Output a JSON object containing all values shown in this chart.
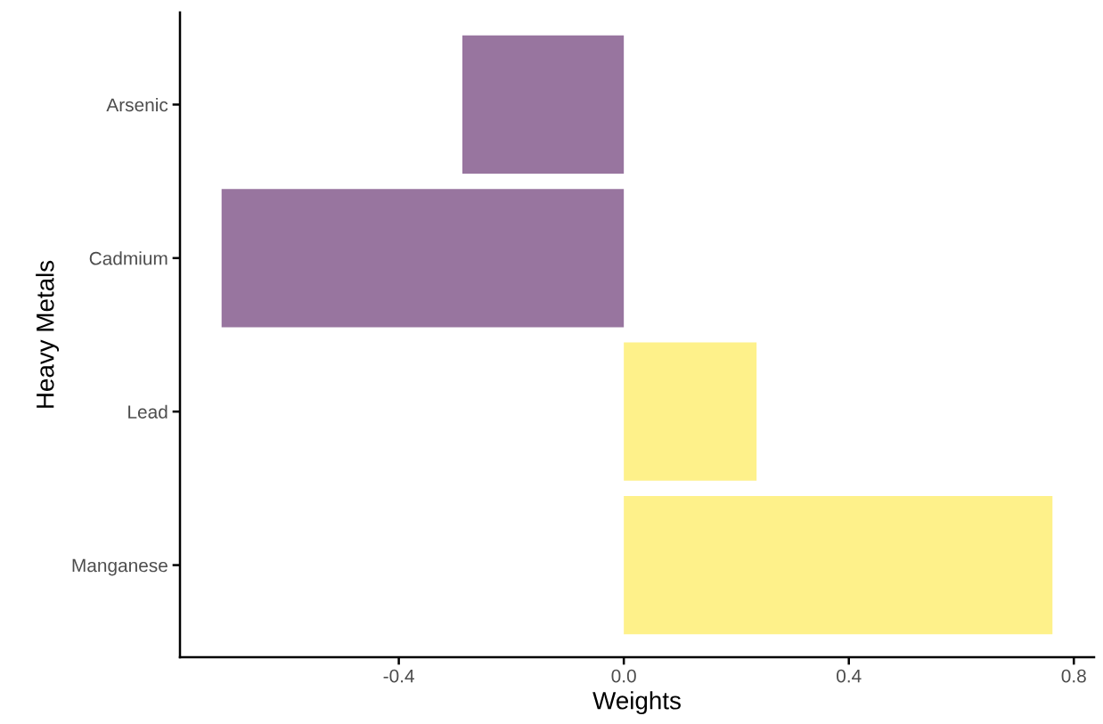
{
  "chart_data": {
    "type": "bar",
    "orientation": "horizontal",
    "xlabel": "Weights",
    "ylabel": "Heavy Metals",
    "categories": [
      "Arsenic",
      "Cadmium",
      "Lead",
      "Manganese"
    ],
    "values": [
      -0.287,
      -0.715,
      0.236,
      0.762
    ],
    "colors": [
      "#98759f",
      "#98759f",
      "#fef18a",
      "#fef18a"
    ],
    "xlim": [
      -0.789,
      0.836
    ],
    "xticks": [
      -0.4,
      {
        "value": 0,
        "label": "0.0"
      },
      0.4,
      0.8
    ],
    "grid": false
  }
}
